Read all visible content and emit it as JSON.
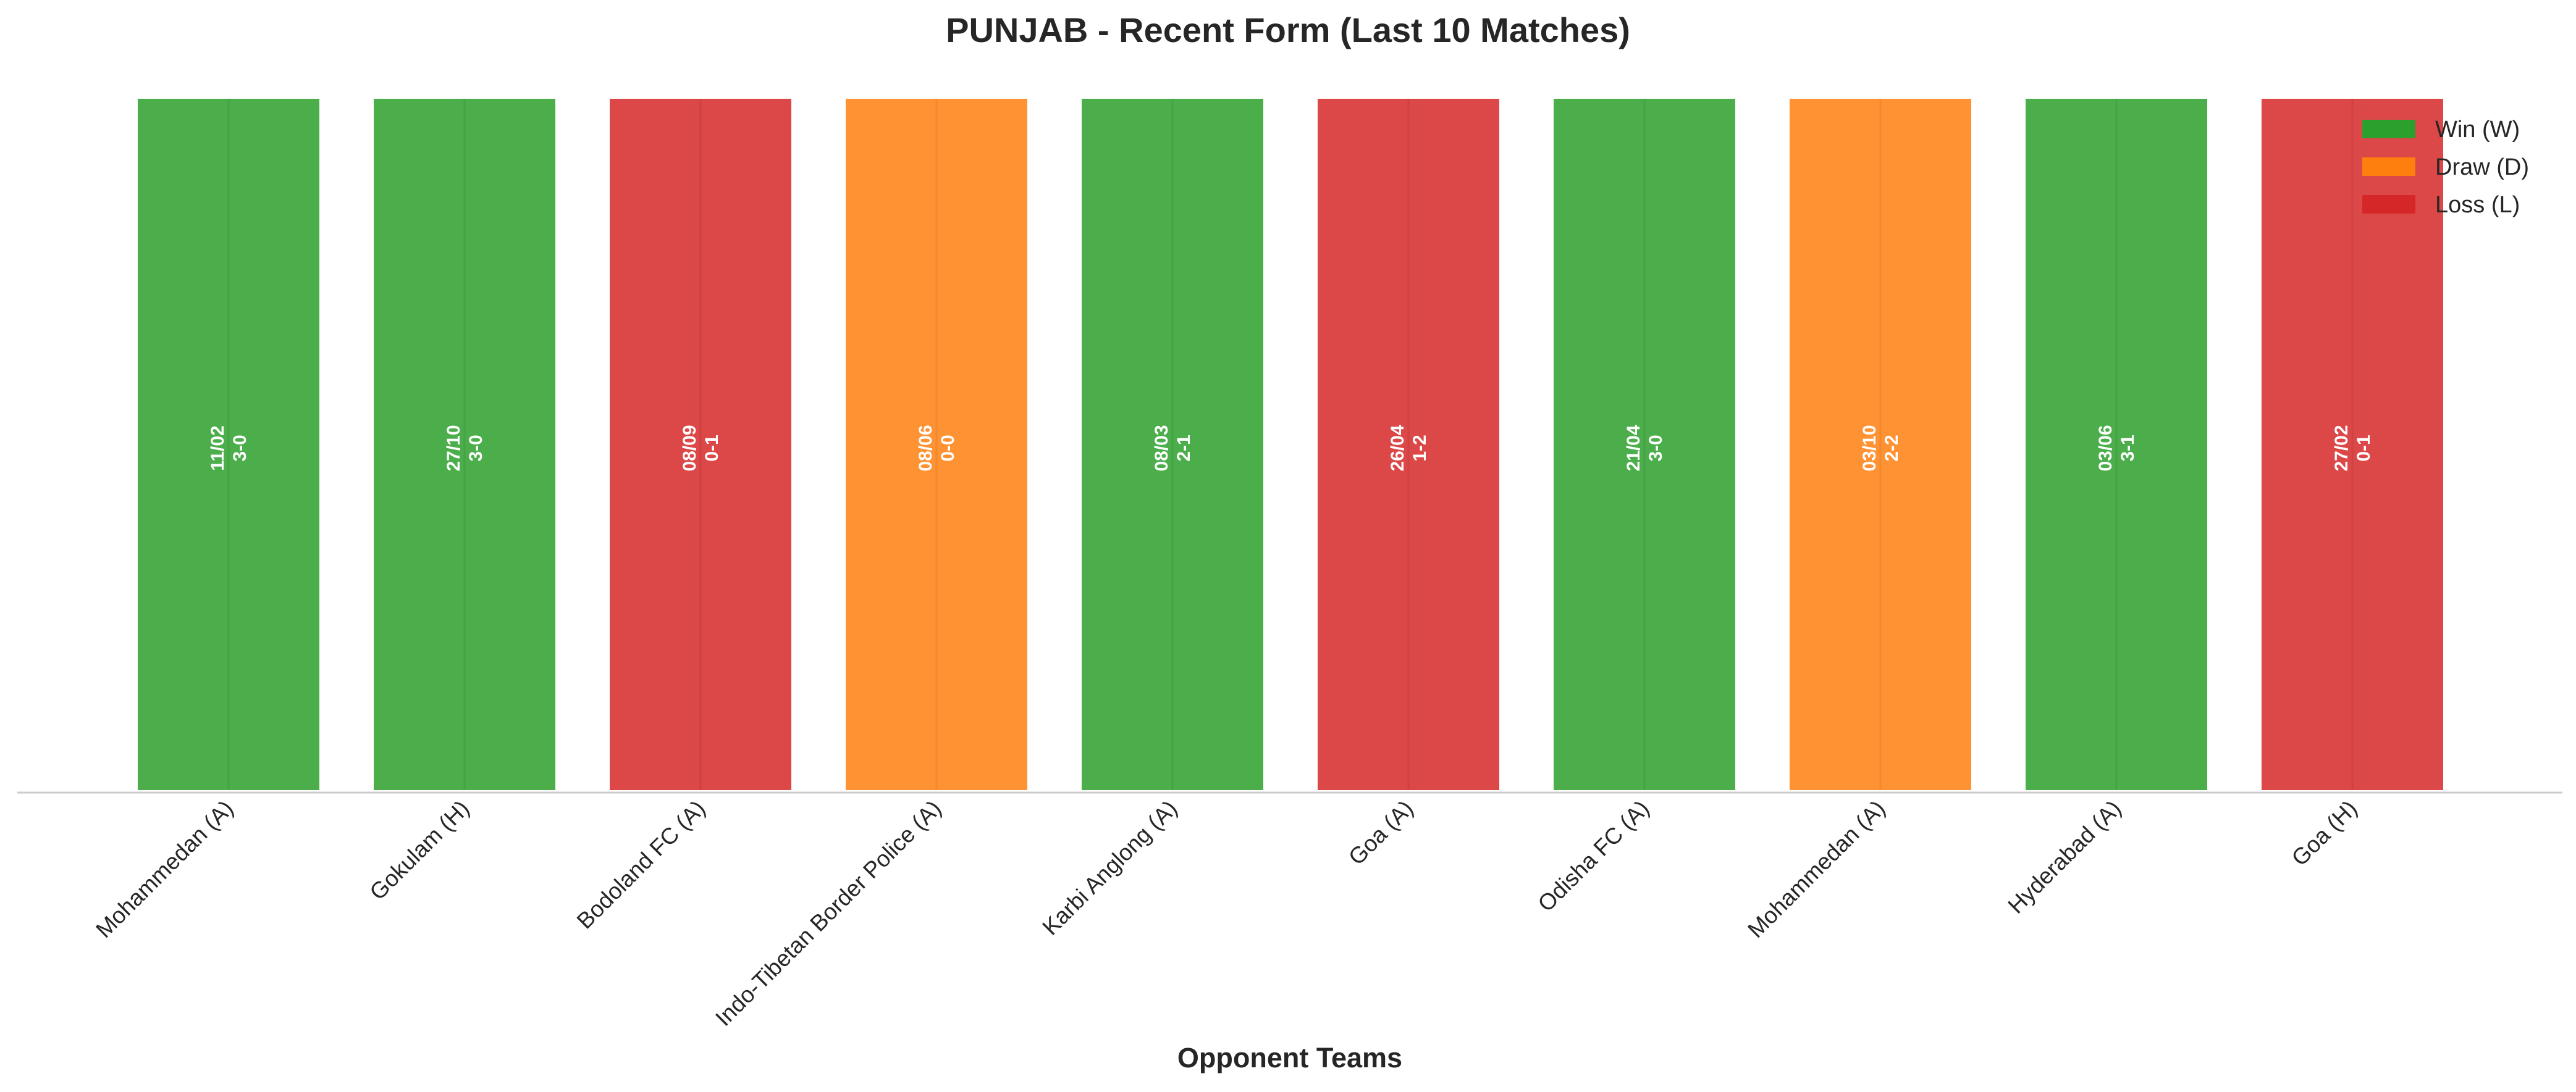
{
  "chart_data": {
    "type": "bar",
    "title": "PUNJAB - Recent Form (Last 10 Matches)",
    "xlabel": "Opponent Teams",
    "ylabel": "",
    "grid": false,
    "legend_position": "top-right",
    "legend": [
      {
        "key": "W",
        "label": "Win (W)",
        "color": "#2ca02c"
      },
      {
        "key": "D",
        "label": "Draw (D)",
        "color": "#ff7f0e"
      },
      {
        "key": "L",
        "label": "Loss (L)",
        "color": "#d62728"
      }
    ],
    "categories": [
      "Mohammedan (A)",
      "Gokulam (H)",
      "Bodoland FC (A)",
      "Indo-Tibetan Border Police (A)",
      "Karbi Anglong (A)",
      "Goa (A)",
      "Odisha FC (A)",
      "Mohammedan (A)",
      "Hyderabad (A)",
      "Goa (H)"
    ],
    "values": [
      1,
      1,
      1,
      1,
      1,
      1,
      1,
      1,
      1,
      1
    ],
    "results": [
      "W",
      "W",
      "L",
      "D",
      "W",
      "L",
      "W",
      "D",
      "W",
      "L"
    ],
    "dates": [
      "11/02",
      "27/10",
      "08/09",
      "08/06",
      "08/03",
      "26/04",
      "21/04",
      "03/10",
      "03/06",
      "27/02"
    ],
    "scores": [
      "3-0",
      "3-0",
      "0-1",
      "0-0",
      "2-1",
      "1-2",
      "3-0",
      "2-2",
      "3-1",
      "0-1"
    ]
  }
}
